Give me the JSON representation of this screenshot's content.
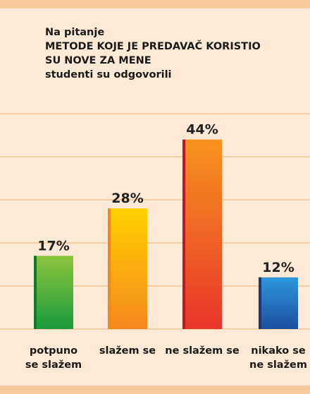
{
  "chart_data": {
    "type": "bar",
    "title": "Na pitanje\nMETODE KOJE JE PREDAVAČ KORISTIO\nSU NOVE ZA MENE\nstudenti su odgovorili",
    "categories": [
      "potpuno\nse slažem",
      "slažem se",
      "ne slažem se",
      "nikako se\nne slažem"
    ],
    "values": [
      17,
      28,
      44,
      12
    ],
    "value_labels": [
      "17%",
      "28%",
      "44%",
      "12%"
    ],
    "colors": [
      [
        "#8dc63f",
        "#1a9a3c"
      ],
      [
        "#ffd200",
        "#f4881f"
      ],
      [
        "#f7941d",
        "#e8352b"
      ],
      [
        "#2e97dc",
        "#1c4f9f"
      ]
    ],
    "edge_colors": [
      "#0f7a2e",
      "#f08a10",
      "#c4161c",
      "#143a80"
    ],
    "ylim": [
      0,
      50
    ],
    "yticks": [
      0,
      10,
      20,
      30,
      40,
      50
    ],
    "grid": true
  }
}
